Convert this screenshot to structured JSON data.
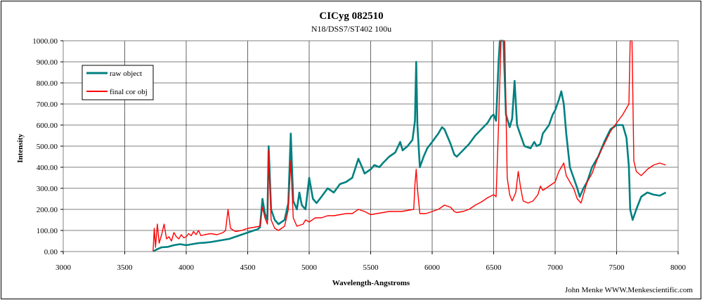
{
  "chart_data": {
    "type": "line",
    "title": "CICyg 082510",
    "subtitle": "N18/DSS7/ST402 100u",
    "xlabel": "Wavelength-Angstroms",
    "ylabel": "Intensity",
    "credit": "John Menke   WWW.Menkescientific.com",
    "xlim": [
      3000,
      8000
    ],
    "ylim": [
      0,
      1000
    ],
    "x_ticks": [
      "3000",
      "3500",
      "4000",
      "4500",
      "5000",
      "5500",
      "6000",
      "6500",
      "7000",
      "7500",
      "8000"
    ],
    "y_ticks": [
      "0.00",
      "100.00",
      "200.00",
      "300.00",
      "400.00",
      "500.00",
      "600.00",
      "700.00",
      "800.00",
      "900.00",
      "1000.00"
    ],
    "grid": true,
    "legend_position": "top-left",
    "series": [
      {
        "name": "raw object",
        "color": "#008080",
        "points": [
          [
            3730,
            0
          ],
          [
            3760,
            10
          ],
          [
            3800,
            20
          ],
          [
            3850,
            22
          ],
          [
            3900,
            30
          ],
          [
            3950,
            35
          ],
          [
            4000,
            30
          ],
          [
            4050,
            35
          ],
          [
            4100,
            40
          ],
          [
            4150,
            42
          ],
          [
            4200,
            45
          ],
          [
            4250,
            50
          ],
          [
            4300,
            55
          ],
          [
            4350,
            60
          ],
          [
            4400,
            70
          ],
          [
            4450,
            80
          ],
          [
            4500,
            90
          ],
          [
            4550,
            100
          ],
          [
            4580,
            105
          ],
          [
            4600,
            115
          ],
          [
            4620,
            250
          ],
          [
            4640,
            180
          ],
          [
            4660,
            150
          ],
          [
            4670,
            500
          ],
          [
            4690,
            200
          ],
          [
            4720,
            150
          ],
          [
            4750,
            130
          ],
          [
            4800,
            150
          ],
          [
            4830,
            230
          ],
          [
            4850,
            560
          ],
          [
            4870,
            240
          ],
          [
            4900,
            200
          ],
          [
            4920,
            280
          ],
          [
            4940,
            220
          ],
          [
            4970,
            200
          ],
          [
            5000,
            350
          ],
          [
            5030,
            250
          ],
          [
            5060,
            230
          ],
          [
            5100,
            260
          ],
          [
            5150,
            300
          ],
          [
            5200,
            280
          ],
          [
            5250,
            320
          ],
          [
            5300,
            330
          ],
          [
            5350,
            350
          ],
          [
            5400,
            440
          ],
          [
            5430,
            400
          ],
          [
            5450,
            370
          ],
          [
            5500,
            390
          ],
          [
            5530,
            410
          ],
          [
            5570,
            400
          ],
          [
            5600,
            420
          ],
          [
            5650,
            450
          ],
          [
            5700,
            470
          ],
          [
            5740,
            520
          ],
          [
            5760,
            480
          ],
          [
            5800,
            500
          ],
          [
            5840,
            530
          ],
          [
            5860,
            620
          ],
          [
            5870,
            900
          ],
          [
            5880,
            600
          ],
          [
            5900,
            400
          ],
          [
            5930,
            450
          ],
          [
            5960,
            490
          ],
          [
            6000,
            520
          ],
          [
            6050,
            560
          ],
          [
            6080,
            590
          ],
          [
            6100,
            580
          ],
          [
            6150,
            510
          ],
          [
            6180,
            460
          ],
          [
            6200,
            450
          ],
          [
            6250,
            480
          ],
          [
            6300,
            510
          ],
          [
            6350,
            550
          ],
          [
            6400,
            580
          ],
          [
            6450,
            610
          ],
          [
            6480,
            640
          ],
          [
            6500,
            650
          ],
          [
            6520,
            620
          ],
          [
            6540,
            900
          ],
          [
            6550,
            1000
          ],
          [
            6580,
            1000
          ],
          [
            6600,
            650
          ],
          [
            6630,
            590
          ],
          [
            6650,
            630
          ],
          [
            6670,
            810
          ],
          [
            6690,
            600
          ],
          [
            6720,
            550
          ],
          [
            6750,
            500
          ],
          [
            6800,
            490
          ],
          [
            6830,
            520
          ],
          [
            6850,
            500
          ],
          [
            6880,
            510
          ],
          [
            6900,
            560
          ],
          [
            6950,
            600
          ],
          [
            6980,
            650
          ],
          [
            7000,
            670
          ],
          [
            7030,
            720
          ],
          [
            7050,
            760
          ],
          [
            7070,
            700
          ],
          [
            7090,
            560
          ],
          [
            7120,
            400
          ],
          [
            7150,
            350
          ],
          [
            7180,
            300
          ],
          [
            7200,
            260
          ],
          [
            7230,
            300
          ],
          [
            7260,
            330
          ],
          [
            7300,
            400
          ],
          [
            7350,
            450
          ],
          [
            7400,
            520
          ],
          [
            7450,
            580
          ],
          [
            7500,
            600
          ],
          [
            7550,
            600
          ],
          [
            7580,
            540
          ],
          [
            7600,
            400
          ],
          [
            7610,
            200
          ],
          [
            7630,
            150
          ],
          [
            7660,
            200
          ],
          [
            7700,
            260
          ],
          [
            7750,
            280
          ],
          [
            7800,
            270
          ],
          [
            7850,
            265
          ],
          [
            7900,
            280
          ]
        ]
      },
      {
        "name": "final cor obj",
        "color": "#ff0000",
        "points": [
          [
            3730,
            0
          ],
          [
            3740,
            110
          ],
          [
            3750,
            20
          ],
          [
            3765,
            130
          ],
          [
            3780,
            40
          ],
          [
            3800,
            80
          ],
          [
            3820,
            130
          ],
          [
            3840,
            60
          ],
          [
            3860,
            70
          ],
          [
            3880,
            50
          ],
          [
            3900,
            90
          ],
          [
            3920,
            70
          ],
          [
            3940,
            60
          ],
          [
            3960,
            80
          ],
          [
            3980,
            65
          ],
          [
            4000,
            70
          ],
          [
            4020,
            85
          ],
          [
            4040,
            75
          ],
          [
            4060,
            95
          ],
          [
            4080,
            80
          ],
          [
            4100,
            100
          ],
          [
            4120,
            75
          ],
          [
            4150,
            80
          ],
          [
            4200,
            85
          ],
          [
            4250,
            80
          ],
          [
            4300,
            90
          ],
          [
            4320,
            100
          ],
          [
            4340,
            200
          ],
          [
            4360,
            110
          ],
          [
            4400,
            95
          ],
          [
            4450,
            100
          ],
          [
            4500,
            110
          ],
          [
            4550,
            115
          ],
          [
            4600,
            120
          ],
          [
            4620,
            210
          ],
          [
            4640,
            160
          ],
          [
            4660,
            130
          ],
          [
            4670,
            480
          ],
          [
            4690,
            150
          ],
          [
            4720,
            110
          ],
          [
            4750,
            100
          ],
          [
            4800,
            120
          ],
          [
            4830,
            200
          ],
          [
            4850,
            430
          ],
          [
            4870,
            160
          ],
          [
            4900,
            120
          ],
          [
            4950,
            130
          ],
          [
            4970,
            150
          ],
          [
            5000,
            140
          ],
          [
            5050,
            160
          ],
          [
            5100,
            160
          ],
          [
            5150,
            170
          ],
          [
            5200,
            170
          ],
          [
            5250,
            175
          ],
          [
            5300,
            180
          ],
          [
            5350,
            180
          ],
          [
            5400,
            200
          ],
          [
            5450,
            190
          ],
          [
            5500,
            175
          ],
          [
            5550,
            180
          ],
          [
            5600,
            185
          ],
          [
            5650,
            190
          ],
          [
            5700,
            190
          ],
          [
            5750,
            190
          ],
          [
            5800,
            195
          ],
          [
            5850,
            200
          ],
          [
            5860,
            320
          ],
          [
            5870,
            390
          ],
          [
            5880,
            300
          ],
          [
            5900,
            180
          ],
          [
            5950,
            180
          ],
          [
            6000,
            190
          ],
          [
            6050,
            200
          ],
          [
            6100,
            220
          ],
          [
            6150,
            210
          ],
          [
            6180,
            190
          ],
          [
            6200,
            185
          ],
          [
            6250,
            190
          ],
          [
            6300,
            200
          ],
          [
            6350,
            220
          ],
          [
            6400,
            235
          ],
          [
            6450,
            255
          ],
          [
            6500,
            270
          ],
          [
            6520,
            260
          ],
          [
            6540,
            600
          ],
          [
            6560,
            1000
          ],
          [
            6590,
            1000
          ],
          [
            6610,
            350
          ],
          [
            6630,
            270
          ],
          [
            6650,
            240
          ],
          [
            6680,
            280
          ],
          [
            6700,
            380
          ],
          [
            6720,
            300
          ],
          [
            6740,
            240
          ],
          [
            6780,
            230
          ],
          [
            6820,
            240
          ],
          [
            6860,
            270
          ],
          [
            6880,
            310
          ],
          [
            6900,
            290
          ],
          [
            6950,
            310
          ],
          [
            7000,
            330
          ],
          [
            7030,
            380
          ],
          [
            7050,
            400
          ],
          [
            7070,
            420
          ],
          [
            7090,
            360
          ],
          [
            7120,
            330
          ],
          [
            7150,
            300
          ],
          [
            7180,
            250
          ],
          [
            7210,
            230
          ],
          [
            7240,
            290
          ],
          [
            7260,
            330
          ],
          [
            7300,
            370
          ],
          [
            7350,
            450
          ],
          [
            7400,
            510
          ],
          [
            7450,
            570
          ],
          [
            7500,
            610
          ],
          [
            7550,
            650
          ],
          [
            7580,
            680
          ],
          [
            7600,
            700
          ],
          [
            7610,
            1000
          ],
          [
            7625,
            1000
          ],
          [
            7640,
            430
          ],
          [
            7660,
            380
          ],
          [
            7700,
            360
          ],
          [
            7750,
            390
          ],
          [
            7800,
            410
          ],
          [
            7850,
            420
          ],
          [
            7900,
            410
          ]
        ]
      }
    ]
  }
}
